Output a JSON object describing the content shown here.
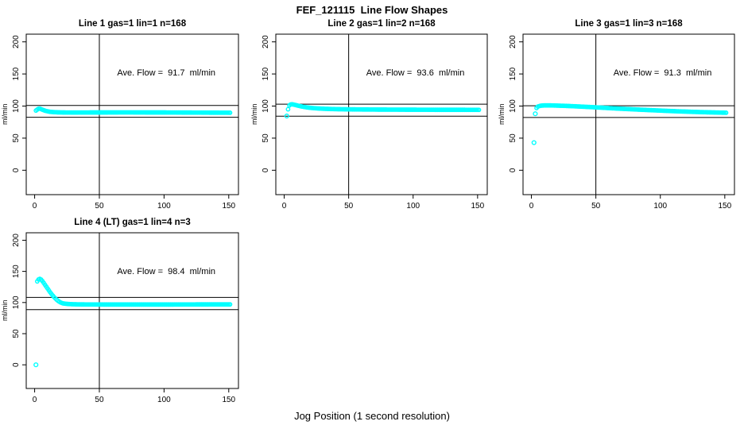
{
  "figure": {
    "title": "FEF_121115  Line Flow Shapes",
    "xlabel": "Jog Position (1 second resolution)",
    "point_color": "#00ffff",
    "axis_color": "#000000",
    "background": "#ffffff"
  },
  "chart_data": [
    {
      "type": "scatter",
      "title": "Line 1 gas=1 lin=1 n=168",
      "ylabel": "ml/min",
      "annotation": "Ave. Flow =  91.7  ml/min",
      "ave_flow_ml_min": 91.7,
      "x_ticks": [
        0,
        50,
        100,
        150
      ],
      "y_ticks": [
        0,
        50,
        100,
        150,
        200
      ],
      "x_range": [
        -6.5,
        157.5
      ],
      "y_range": [
        -38,
        212
      ],
      "vline_x": 50,
      "hlines": [
        100.9,
        82.5
      ],
      "outliers": [],
      "curve_keypoints": [
        [
          1,
          93
        ],
        [
          2,
          94.5
        ],
        [
          3,
          95.8
        ],
        [
          4,
          96
        ],
        [
          5,
          95.2
        ],
        [
          6,
          94.3
        ],
        [
          8,
          92.8
        ],
        [
          10,
          91.8
        ],
        [
          12,
          91
        ],
        [
          15,
          90.5
        ],
        [
          18,
          90.2
        ],
        [
          22,
          90
        ],
        [
          30,
          89.9
        ],
        [
          45,
          90
        ],
        [
          70,
          90.1
        ],
        [
          100,
          90
        ],
        [
          125,
          89.8
        ],
        [
          140,
          89.7
        ],
        [
          151,
          89.6
        ]
      ],
      "x_step": 1,
      "grid": false,
      "legend": "none"
    },
    {
      "type": "scatter",
      "title": "Line 2 gas=1 lin=2 n=168",
      "ylabel": "ml/min",
      "annotation": "Ave. Flow =  93.6  ml/min",
      "ave_flow_ml_min": 93.6,
      "x_ticks": [
        0,
        50,
        100,
        150
      ],
      "y_ticks": [
        0,
        50,
        100,
        150,
        200
      ],
      "x_range": [
        -6.5,
        157.5
      ],
      "y_range": [
        -38,
        212
      ],
      "vline_x": 50,
      "hlines": [
        103.0,
        84.2
      ],
      "outliers": [
        [
          2,
          84.5
        ]
      ],
      "curve_keypoints": [
        [
          3,
          95
        ],
        [
          4,
          101
        ],
        [
          5,
          102.5
        ],
        [
          6,
          102.8
        ],
        [
          8,
          102
        ],
        [
          10,
          101
        ],
        [
          12,
          100
        ],
        [
          15,
          98.8
        ],
        [
          18,
          97.8
        ],
        [
          22,
          96.9
        ],
        [
          26,
          96.3
        ],
        [
          32,
          95.7
        ],
        [
          40,
          95.2
        ],
        [
          50,
          94.9
        ],
        [
          60,
          94.7
        ],
        [
          75,
          94.5
        ],
        [
          90,
          94.4
        ],
        [
          105,
          94.3
        ],
        [
          120,
          94.2
        ],
        [
          135,
          94.2
        ],
        [
          151,
          94.1
        ]
      ],
      "x_step": 1,
      "grid": false,
      "legend": "none"
    },
    {
      "type": "scatter",
      "title": "Line 3 gas=1 lin=3 n=168",
      "ylabel": "ml/min",
      "annotation": "Ave. Flow =  91.3  ml/min",
      "ave_flow_ml_min": 91.3,
      "x_ticks": [
        0,
        50,
        100,
        150
      ],
      "y_ticks": [
        0,
        50,
        100,
        150,
        200
      ],
      "x_range": [
        -6.5,
        157.5
      ],
      "y_range": [
        -38,
        212
      ],
      "vline_x": 50,
      "hlines": [
        100.4,
        82.2
      ],
      "outliers": [
        [
          2,
          43
        ],
        [
          3,
          88
        ]
      ],
      "curve_keypoints": [
        [
          4,
          97
        ],
        [
          5,
          99.2
        ],
        [
          7,
          100.5
        ],
        [
          10,
          101
        ],
        [
          15,
          101
        ],
        [
          20,
          100.7
        ],
        [
          26,
          100.3
        ],
        [
          32,
          99.8
        ],
        [
          40,
          99
        ],
        [
          48,
          98.2
        ],
        [
          57,
          97.2
        ],
        [
          66,
          96.2
        ],
        [
          76,
          95.2
        ],
        [
          86,
          94.2
        ],
        [
          96,
          93.3
        ],
        [
          106,
          92.4
        ],
        [
          116,
          91.6
        ],
        [
          126,
          90.9
        ],
        [
          136,
          90.3
        ],
        [
          144,
          89.9
        ],
        [
          151,
          89.6
        ]
      ],
      "x_step": 1,
      "grid": false,
      "legend": "none"
    },
    {
      "type": "scatter",
      "title": "Line 4 (LT) gas=1 lin=4 n=3",
      "ylabel": "ml/min",
      "annotation": "Ave. Flow =  98.4  ml/min",
      "ave_flow_ml_min": 98.4,
      "x_ticks": [
        0,
        50,
        100,
        150
      ],
      "y_ticks": [
        0,
        50,
        100,
        150,
        200
      ],
      "x_range": [
        -6.5,
        157.5
      ],
      "y_range": [
        -38,
        212
      ],
      "vline_x": 50,
      "hlines": [
        108.2,
        88.6
      ],
      "outliers": [
        [
          1,
          0
        ]
      ],
      "curve_keypoints": [
        [
          2,
          134
        ],
        [
          3,
          137
        ],
        [
          4,
          138
        ],
        [
          5,
          136.8
        ],
        [
          6,
          134.5
        ],
        [
          7,
          131.5
        ],
        [
          8,
          128.5
        ],
        [
          9,
          125.5
        ],
        [
          10,
          122.5
        ],
        [
          11,
          119.5
        ],
        [
          12,
          116.5
        ],
        [
          13,
          113.8
        ],
        [
          14,
          111.2
        ],
        [
          15,
          108.8
        ],
        [
          16,
          106.6
        ],
        [
          17,
          104.6
        ],
        [
          18,
          102.9
        ],
        [
          19,
          101.4
        ],
        [
          20,
          100.2
        ],
        [
          21,
          99.3
        ],
        [
          22,
          98.6
        ],
        [
          24,
          98
        ],
        [
          26,
          97.6
        ],
        [
          28,
          97.4
        ],
        [
          30,
          97.2
        ],
        [
          35,
          97
        ],
        [
          40,
          96.9
        ],
        [
          60,
          96.8
        ],
        [
          80,
          96.8
        ],
        [
          100,
          96.8
        ],
        [
          120,
          96.9
        ],
        [
          135,
          97
        ],
        [
          151,
          97
        ]
      ],
      "x_step": 1,
      "grid": false,
      "legend": "none"
    }
  ]
}
